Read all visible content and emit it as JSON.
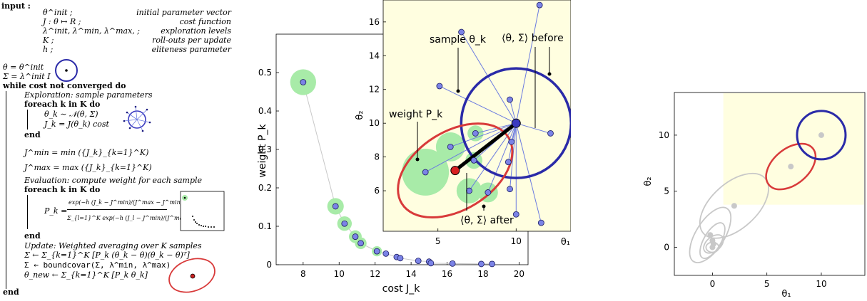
{
  "algorithm": {
    "input_label": "input :",
    "inputs": [
      {
        "sym": "θ^init ;",
        "desc": "initial parameter vector"
      },
      {
        "sym": "J : θ ↦ R ;",
        "desc": "cost function"
      },
      {
        "sym": "λ^init, λ^min, λ^max, ;",
        "desc": "exploration levels"
      },
      {
        "sym": "K ;",
        "desc": "roll-outs per update"
      },
      {
        "sym": "h ;",
        "desc": "eliteness parameter"
      }
    ],
    "init_theta": "θ = θ^init",
    "init_sigma": "Σ = λ^init I",
    "while_line": "while cost not converged do",
    "exploration_comment": "Exploration: sample parameters",
    "foreach1": "foreach k in K do",
    "sample_line": "θ_k ∼ 𝒩(θ, Σ)",
    "cost_line": "J_k = J(θ_k)  cost",
    "end1": "end",
    "jmin_line": "J^min = min ({J_k}_{k=1}^K)",
    "jmax_line": "J^max = max ({J_k}_{k=1}^K)",
    "evaluation_comment": "Evaluation: compute weight for each sample",
    "foreach2": "foreach k in K do",
    "weight_lhs": "P_k =",
    "weight_num": "exp(−h (J_k − J^min)/(J^max − J^min))",
    "weight_den": "Σ_{l=1}^K exp(−h (J_l − J^min)/(J^max − J^min))",
    "end2": "end",
    "update_comment": "Update: Weighted averaging over K samples",
    "sigma_update": "Σ ← Σ_{k=1}^K [P_k (θ_k − θ)(θ_k − θ)ᵀ]",
    "bound_line": "Σ ← boundcovar(Σ, λ^min, λ^max)",
    "theta_update": "θ_new ← Σ_{k=1}^K [P_k θ_k]",
    "end3": "end"
  },
  "weights_chart": {
    "xlabel": "cost J_k",
    "ylabel": "weight P_k",
    "x_ticks": [
      "8",
      "10",
      "12",
      "14",
      "16",
      "18",
      "20"
    ],
    "y_ticks": [
      "0",
      "0.1",
      "0.2",
      "0.3",
      "0.4",
      "0.5"
    ]
  },
  "inset_chart": {
    "ylabel": "θ₂",
    "xlabel": "θ₁",
    "x_ticks": [
      "5",
      "10"
    ],
    "y_ticks": [
      "6",
      "8",
      "10",
      "12",
      "14",
      "16"
    ],
    "label_sample": "sample θ_k",
    "label_before": "⟨θ, Σ⟩ before",
    "label_weight": "weight P_k",
    "label_after": "⟨θ, Σ⟩ after"
  },
  "traj_chart": {
    "ylabel": "θ₂",
    "xlabel": "θ₁",
    "x_ticks": [
      "0",
      "5",
      "10"
    ],
    "y_ticks": [
      "0",
      "5",
      "10"
    ]
  },
  "chart_data": [
    {
      "type": "scatter",
      "xlabel": "cost J_k",
      "ylabel": "weight P_k",
      "xlim": [
        6.5,
        20.5
      ],
      "ylim": [
        0,
        0.6
      ],
      "points": [
        {
          "x": 8.0,
          "y": 0.475
        },
        {
          "x": 9.8,
          "y": 0.152
        },
        {
          "x": 10.3,
          "y": 0.107
        },
        {
          "x": 10.9,
          "y": 0.073
        },
        {
          "x": 11.2,
          "y": 0.056
        },
        {
          "x": 12.1,
          "y": 0.035
        },
        {
          "x": 12.6,
          "y": 0.029
        },
        {
          "x": 13.2,
          "y": 0.02
        },
        {
          "x": 13.4,
          "y": 0.017
        },
        {
          "x": 14.4,
          "y": 0.01
        },
        {
          "x": 15.0,
          "y": 0.008
        },
        {
          "x": 15.1,
          "y": 0.004
        },
        {
          "x": 16.3,
          "y": 0.003
        },
        {
          "x": 17.9,
          "y": 0.002
        },
        {
          "x": 18.5,
          "y": 0.002
        }
      ]
    },
    {
      "type": "scatter",
      "xlabel": "θ₁",
      "ylabel": "θ₂",
      "xlim": [
        1.5,
        13.5
      ],
      "ylim": [
        3.6,
        17.3
      ],
      "mean_before": [
        10.0,
        10.0
      ],
      "mean_after": [
        6.1,
        7.2
      ],
      "samples": [
        {
          "x": 4.2,
          "y": 7.1,
          "w": 0.475
        },
        {
          "x": 5.1,
          "y": 12.2,
          "w": 0.003
        },
        {
          "x": 6.5,
          "y": 15.4,
          "w": 0.004
        },
        {
          "x": 7.3,
          "y": 7.8,
          "w": 0.035
        },
        {
          "x": 7.4,
          "y": 9.4,
          "w": 0.029
        },
        {
          "x": 8.2,
          "y": 5.9,
          "w": 0.056
        },
        {
          "x": 7.0,
          "y": 6.0,
          "w": 0.107
        },
        {
          "x": 5.8,
          "y": 8.6,
          "w": 0.152
        },
        {
          "x": 9.6,
          "y": 11.4,
          "w": 0.002
        },
        {
          "x": 9.7,
          "y": 8.9,
          "w": 0.017
        },
        {
          "x": 9.5,
          "y": 7.7,
          "w": 0.02
        },
        {
          "x": 9.6,
          "y": 6.1,
          "w": 0.01
        },
        {
          "x": 10.0,
          "y": 4.6,
          "w": 0.008
        },
        {
          "x": 11.6,
          "y": 4.1,
          "w": 0.002
        },
        {
          "x": 12.2,
          "y": 9.4,
          "w": 0.002
        },
        {
          "x": 11.5,
          "y": 17.0,
          "w": 0.002
        }
      ]
    },
    {
      "type": "scatter",
      "xlabel": "θ₁",
      "ylabel": "θ₂",
      "xlim": [
        -3.5,
        14
      ],
      "ylim": [
        -2.5,
        13.8
      ],
      "means": [
        {
          "x": 10.0,
          "y": 10.0
        },
        {
          "x": 7.2,
          "y": 7.2
        },
        {
          "x": 2.0,
          "y": 3.7
        },
        {
          "x": -0.2,
          "y": 1.1
        },
        {
          "x": 0.0,
          "y": 0.6
        },
        {
          "x": 0.1,
          "y": 0.3
        },
        {
          "x": 0.0,
          "y": 0.0
        }
      ]
    }
  ]
}
